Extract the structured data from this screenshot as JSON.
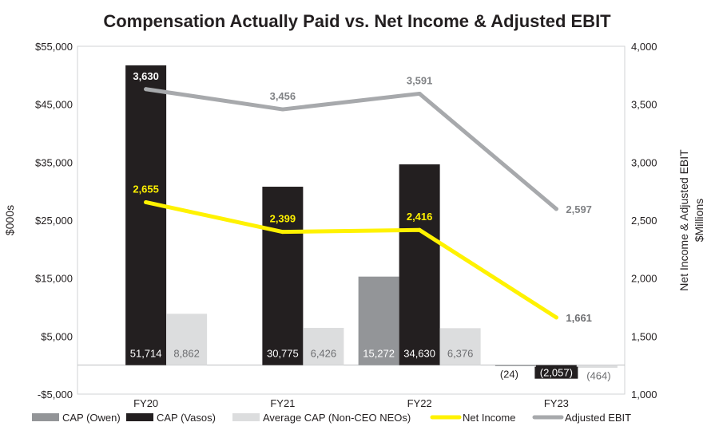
{
  "chart_data": {
    "type": "bar+line",
    "title": "Compensation Actually Paid vs. Net Income & Adjusted EBIT",
    "ylabel": "$000s",
    "y2label_line1": "Net Income & Adjusted EBIT",
    "y2label_line2": "$Millions",
    "categories": [
      "FY20",
      "FY21",
      "FY22",
      "FY23"
    ],
    "ylim": [
      -5000,
      55000
    ],
    "y2lim": [
      1000,
      4000
    ],
    "yticks": [
      -5000,
      5000,
      15000,
      25000,
      35000,
      45000,
      55000
    ],
    "ytick_labels": [
      "-$5,000",
      "$5,000",
      "$15,000",
      "$25,000",
      "$35,000",
      "$45,000",
      "$55,000"
    ],
    "y2ticks": [
      1000,
      1500,
      2000,
      2500,
      3000,
      3500,
      4000
    ],
    "y2tick_labels": [
      "1,000",
      "1,500",
      "2,000",
      "2,500",
      "3,000",
      "3,500",
      "4,000"
    ],
    "bar_series": [
      {
        "name": "CAP (Owen)",
        "color": "#939598",
        "values": [
          null,
          null,
          15272,
          -24
        ],
        "labels": [
          "",
          "",
          "15,272",
          "(24)"
        ]
      },
      {
        "name": "CAP (Vasos)",
        "color": "#231f20",
        "values": [
          51714,
          30775,
          34630,
          -2057
        ],
        "labels": [
          "51,714",
          "30,775",
          "34,630",
          "(2,057)"
        ]
      },
      {
        "name": "Average CAP (Non-CEO NEOs)",
        "color": "#dcddde",
        "values": [
          8862,
          6426,
          6376,
          -464
        ],
        "labels": [
          "8,862",
          "6,426",
          "6,376",
          "(464)"
        ]
      }
    ],
    "line_series": [
      {
        "name": "Net Income",
        "color": "#fff200",
        "values": [
          2655,
          2399,
          2416,
          1661
        ],
        "labels": [
          "2,655",
          "2,399",
          "2,416",
          "1,661"
        ]
      },
      {
        "name": "Adjusted EBIT",
        "color": "#a7a9ac",
        "values": [
          3630,
          3456,
          3591,
          2597
        ],
        "labels": [
          "3,630",
          "3,456",
          "3,591",
          "2,597"
        ]
      }
    ],
    "legend": [
      "CAP (Owen)",
      "CAP (Vasos)",
      "Average CAP (Non-CEO NEOs)",
      "Net Income",
      "Adjusted EBIT"
    ],
    "legend_position": "bottom"
  }
}
